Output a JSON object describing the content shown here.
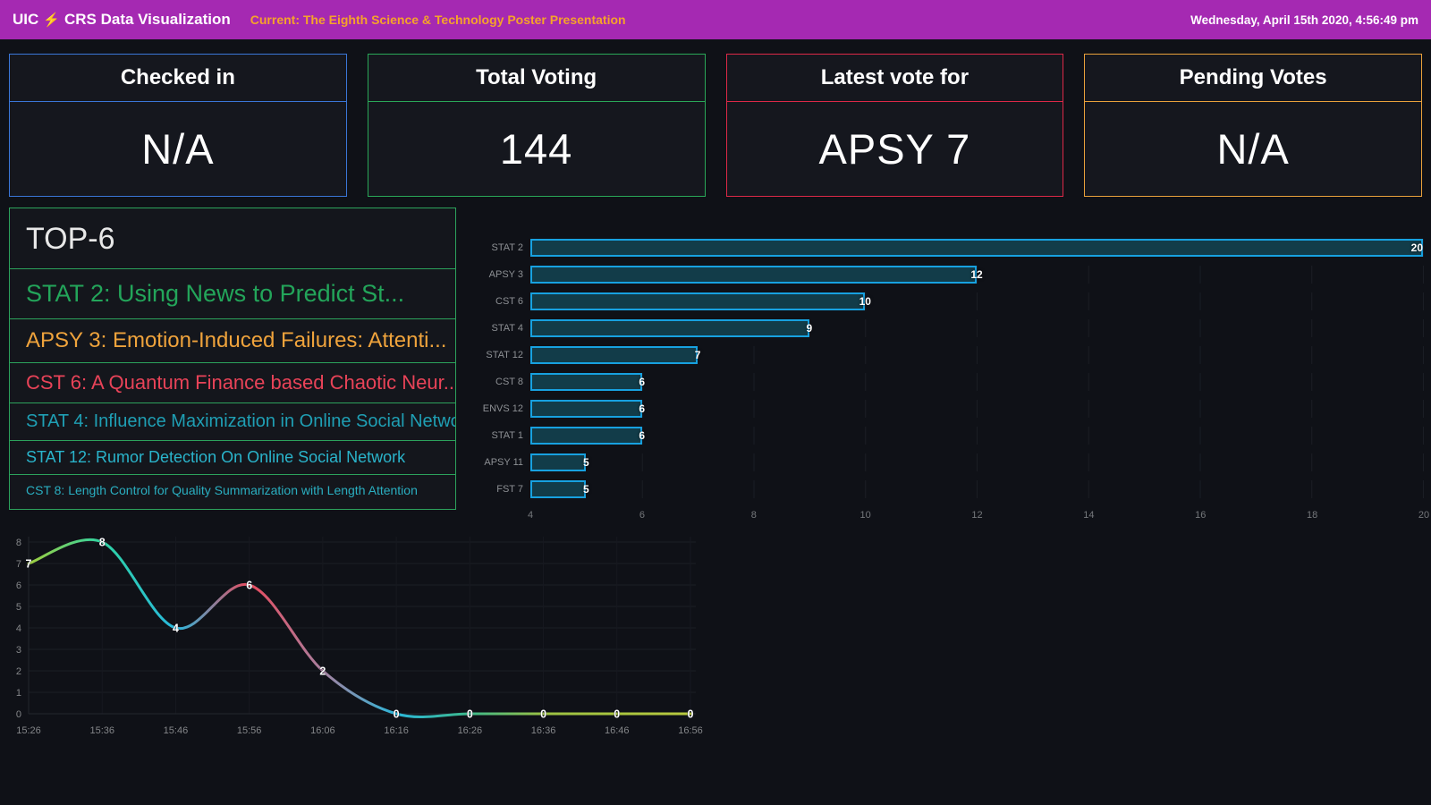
{
  "header": {
    "app_title_left": "UIC",
    "bolt_icon": "⚡",
    "app_title_right": "CRS Data Visualization",
    "current_label": "Current: The Eighth Science & Technology Poster Presentation",
    "datetime": "Wednesday, April 15th 2020, 4:56:49 pm",
    "bg_color": "#a529b2",
    "accent_color": "#f5a32a"
  },
  "stat_cards": [
    {
      "title": "Checked in",
      "value": "N/A",
      "color": "#3a76d8"
    },
    {
      "title": "Total Voting",
      "value": "144",
      "color": "#2aa758"
    },
    {
      "title": "Latest vote for",
      "value": "APSY 7",
      "color": "#dc2847"
    },
    {
      "title": "Pending Votes",
      "value": "N/A",
      "color": "#e9a13b"
    }
  ],
  "top6": {
    "title": "TOP-6",
    "border_color": "#2ca25c",
    "items": [
      {
        "text": "STAT 2: Using News to Predict St...",
        "color": "#23a55a"
      },
      {
        "text": "APSY 3: Emotion-Induced Failures: Attenti...",
        "color": "#efa33c"
      },
      {
        "text": "CST 6: A Quantum Finance based Chaotic Neur...",
        "color": "#e84358"
      },
      {
        "text": "STAT 4: Influence Maximization in Online Social Netwo...",
        "color": "#1f9fb4"
      },
      {
        "text": "STAT 12: Rumor Detection On Online Social Network",
        "color": "#2ab4cb"
      },
      {
        "text": "CST 8: Length Control for Quality Summarization with Length Attention",
        "color": "#2aaec0"
      }
    ]
  },
  "chart_data": [
    {
      "type": "bar",
      "orientation": "horizontal",
      "title": "",
      "categories": [
        "STAT 2",
        "APSY 3",
        "CST 6",
        "STAT 4",
        "STAT 12",
        "CST 8",
        "ENVS 12",
        "STAT 1",
        "APSY 11",
        "FST 7"
      ],
      "values": [
        20,
        12,
        10,
        9,
        7,
        6,
        6,
        6,
        5,
        5
      ],
      "xlim": [
        4,
        20
      ],
      "x_ticks": [
        4,
        6,
        8,
        10,
        12,
        14,
        16,
        18,
        20
      ],
      "bar_fill": "#123c49",
      "bar_stroke": "#17a1e0",
      "grid": true,
      "legend": false
    },
    {
      "type": "line",
      "title": "",
      "x": [
        "15:26",
        "15:36",
        "15:46",
        "15:56",
        "16:06",
        "16:16",
        "16:26",
        "16:36",
        "16:46",
        "16:56"
      ],
      "values": [
        7,
        8,
        4,
        6,
        2,
        0,
        0,
        0,
        0,
        0
      ],
      "ylim": [
        0,
        8
      ],
      "y_ticks": [
        0,
        1,
        2,
        3,
        4,
        5,
        6,
        7,
        8
      ],
      "point_colors": [
        "#a0cf3e",
        "#2ed3a3",
        "#29b8dd",
        "#e94b5e",
        "#a8809f",
        "#2bb7da",
        "#3db98a",
        "#9cc244",
        "#aac63f",
        "#b8c93f"
      ],
      "line_width": 3,
      "grid": true,
      "legend": false
    }
  ]
}
